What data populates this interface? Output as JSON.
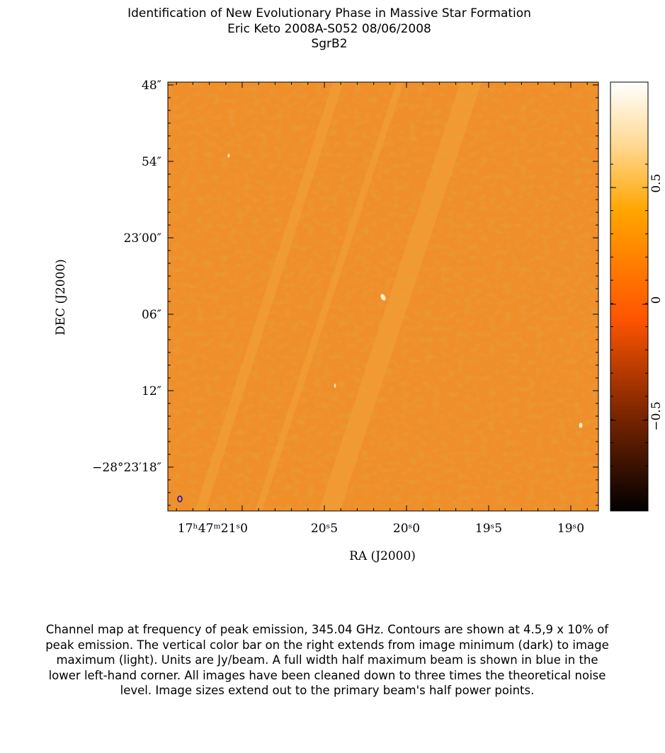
{
  "figure": {
    "title_lines": [
      "Identification of New Evolutionary Phase in Massive Star Formation",
      "Eric Keto   2008A-S052   08/06/2008",
      "SgrB2"
    ],
    "ylabel": "DEC (J2000)",
    "xlabel": "RA (J2000)",
    "yticks": [
      "48″",
      "54″",
      "23′00″",
      "06″",
      "12″",
      "−28°23′18″"
    ],
    "xticks": [
      "17ʰ47ᵐ21ˢ0",
      "20ˢ5",
      "20ˢ0",
      "19ˢ5",
      "19ˢ0"
    ],
    "colorbar_ticks": [
      "0.5",
      "0",
      "−0.5"
    ]
  },
  "caption": "Channel map at frequency of peak emission, 345.04 GHz.  Contours are shown at 4.5,9 x 10% of peak emission.  The vertical color bar on the right extends from image minimum (dark) to image maximum (light).  Units are Jy/beam.  A full width half maximum beam is shown in blue in the lower left-hand corner.  All images have been cleaned down to three times the theoretical noise level.  Image sizes extend out to the primary beam's half power points."
}
